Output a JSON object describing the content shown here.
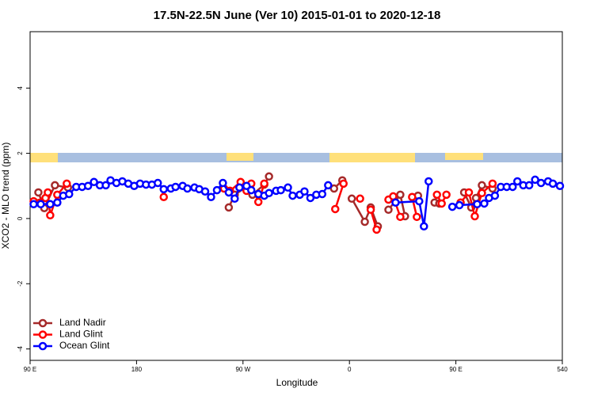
{
  "chart_data": {
    "type": "line",
    "title": "17.5N-22.5N June (Ver 10)   2015-01-01 to 2020-12-18",
    "xlabel": "Longitude",
    "ylabel": "XCO2 - MLO trend (ppm)",
    "xlim": [
      90,
      540
    ],
    "ylim": [
      -4.35,
      5.73
    ],
    "xticks": [
      {
        "value": 90,
        "label": "90 E"
      },
      180,
      {
        "value": 270,
        "label": "90 W"
      },
      {
        "value": 360,
        "label": "0"
      },
      {
        "value": 450,
        "label": "90 E"
      },
      540
    ],
    "yticks": [
      -4,
      -2,
      0,
      2,
      4
    ],
    "legend": "bottom-left",
    "series": [
      {
        "name": "Land Nadir",
        "color": "#a52a2a",
        "x": [
          97,
          102,
          111,
          122,
          null,
          258,
          263,
          273,
          278,
          288,
          292,
          null,
          347,
          354,
          null,
          362,
          373,
          378,
          384,
          null,
          393,
          403,
          407,
          null,
          418,
          null,
          432,
          436,
          null,
          457,
          463,
          467,
          472,
          481
        ],
        "values": [
          0.8,
          0.32,
          1.02,
          0.95,
          null,
          0.34,
          0.73,
          0.97,
          0.73,
          1.04,
          1.29,
          null,
          0.92,
          1.17,
          null,
          0.61,
          -0.1,
          0.34,
          -0.24,
          null,
          0.27,
          0.73,
          0.07,
          null,
          0.7,
          null,
          0.49,
          0.46,
          null,
          0.8,
          0.34,
          0.63,
          1.02,
          0.92
        ]
      },
      {
        "name": "Land Glint",
        "color": "#ff0000",
        "x": [
          93,
          103,
          105,
          107,
          113,
          121,
          null,
          203,
          null,
          254,
          259,
          268,
          273,
          277,
          283,
          288,
          null,
          348,
          355,
          null,
          369,
          null,
          378,
          383,
          null,
          393,
          397,
          403,
          null,
          413,
          417,
          null,
          434,
          438,
          442,
          null,
          454,
          461,
          466,
          472,
          481
        ],
        "values": [
          0.53,
          0.63,
          0.8,
          0.1,
          0.73,
          1.07,
          null,
          0.66,
          null,
          0.92,
          0.85,
          1.12,
          0.85,
          1.07,
          0.51,
          1.07,
          null,
          0.29,
          1.07,
          null,
          0.61,
          null,
          0.27,
          -0.34,
          null,
          0.58,
          0.68,
          0.05,
          null,
          0.66,
          0.05,
          null,
          0.73,
          0.46,
          0.73,
          null,
          0.49,
          0.8,
          0.07,
          0.78,
          1.07
        ]
      },
      {
        "name": "Ocean Glint",
        "color": "#0000ff",
        "x": [
          93,
          99,
          107,
          113,
          118,
          123,
          129,
          134,
          139,
          144,
          149,
          154,
          158,
          163,
          168,
          173,
          178,
          183,
          188,
          193,
          198,
          203,
          209,
          213,
          219,
          223,
          229,
          233,
          238,
          243,
          248,
          253,
          258,
          263,
          267,
          273,
          277,
          283,
          288,
          292,
          298,
          302,
          308,
          312,
          318,
          322,
          327,
          332,
          337,
          342,
          null,
          399,
          419,
          423,
          427,
          null,
          447,
          453,
          468,
          474,
          478,
          483,
          488,
          493,
          498,
          502,
          507,
          512,
          517,
          522,
          528,
          532,
          538
        ],
        "values": [
          0.44,
          0.44,
          0.44,
          0.49,
          0.7,
          0.75,
          0.97,
          0.97,
          1.0,
          1.12,
          1.02,
          1.02,
          1.17,
          1.09,
          1.14,
          1.07,
          1.0,
          1.07,
          1.04,
          1.04,
          1.09,
          0.9,
          0.92,
          0.97,
          1.0,
          0.92,
          0.95,
          0.9,
          0.83,
          0.66,
          0.87,
          1.09,
          0.8,
          0.61,
          0.95,
          1.0,
          0.87,
          0.75,
          0.7,
          0.78,
          0.85,
          0.87,
          0.95,
          0.7,
          0.73,
          0.83,
          0.63,
          0.73,
          0.75,
          1.02,
          null,
          0.49,
          0.53,
          -0.24,
          1.14,
          null,
          0.36,
          0.41,
          0.44,
          0.46,
          0.63,
          0.7,
          0.97,
          0.97,
          0.97,
          1.14,
          1.02,
          1.02,
          1.19,
          1.09,
          1.14,
          1.07,
          1.0
        ]
      }
    ]
  }
}
